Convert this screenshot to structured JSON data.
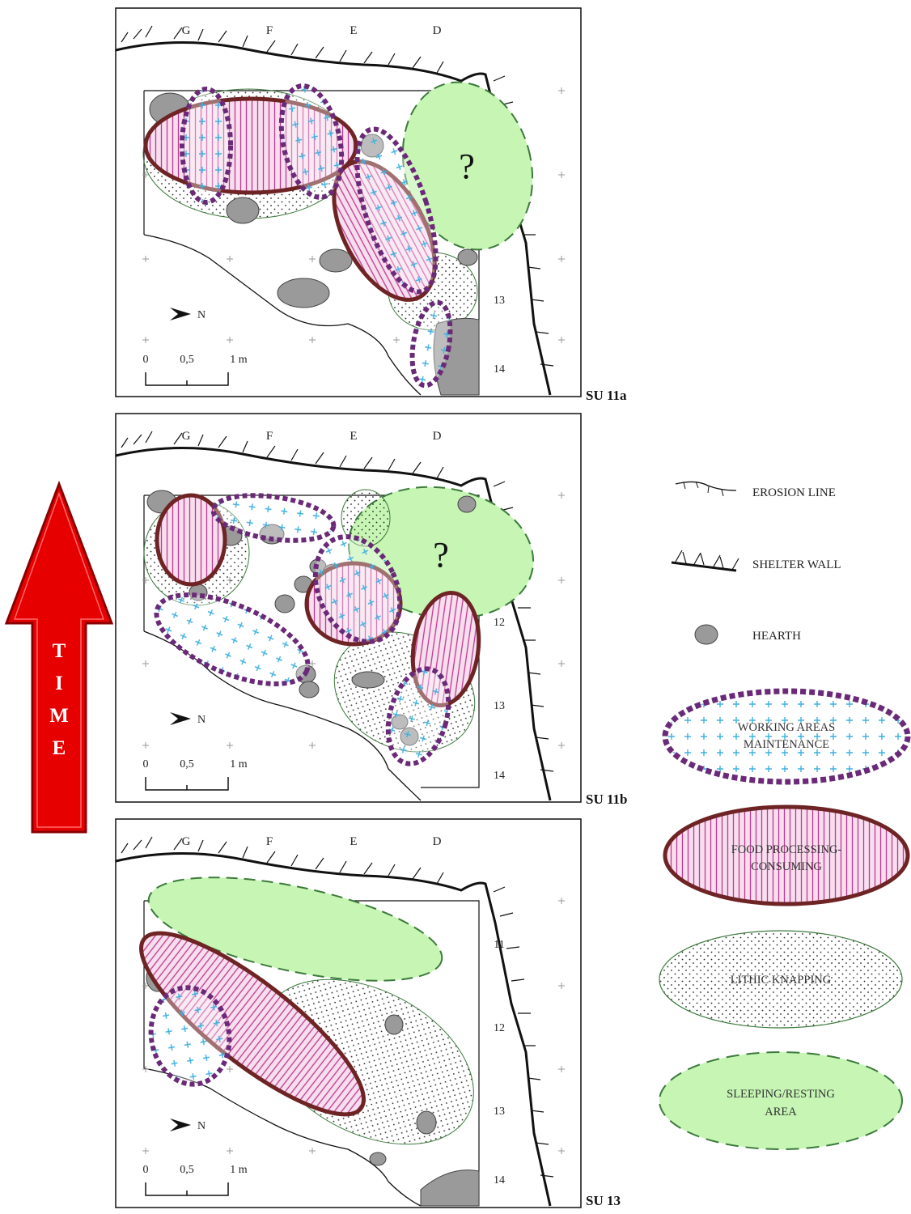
{
  "columns": [
    "G",
    "F",
    "E",
    "D"
  ],
  "rows": [
    "11",
    "12",
    "13",
    "14"
  ],
  "scale": {
    "zero": "0",
    "half": "0,5",
    "one": "1 m"
  },
  "north_label": "N",
  "question_mark": "?",
  "time_arrow": {
    "letters": [
      "T",
      "I",
      "M",
      "E"
    ],
    "color": "#ff0000"
  },
  "panels": [
    {
      "id": "su11a",
      "label": "SU 11a",
      "has_question": true
    },
    {
      "id": "su11b",
      "label": "SU 11b",
      "has_question": true
    },
    {
      "id": "su13",
      "label": "SU 13",
      "has_question": false
    }
  ],
  "legend": {
    "erosion_line": "EROSION LINE",
    "shelter_wall": "SHELTER WALL",
    "hearth": "HEARTH",
    "working_areas": [
      "WORKING AREAS",
      "MAINTENANCE"
    ],
    "food_processing": [
      "FOOD PROCESSING-",
      "CONSUMING"
    ],
    "lithic_knapping": "LITHIC KNAPPING",
    "sleeping_area": [
      "SLEEPING/RESTING",
      "AREA"
    ]
  },
  "colors": {
    "working_stroke": "#6a2a78",
    "working_plus": "#3fb0e0",
    "food_stroke": "#6e2424",
    "food_hatch": "#c2378f",
    "lithic_stroke": "#3c7a3c",
    "sleeping_fill": "#c6f5b4",
    "sleeping_stroke": "#3c7a3c",
    "hearth_fill": "#9a9a9a"
  }
}
